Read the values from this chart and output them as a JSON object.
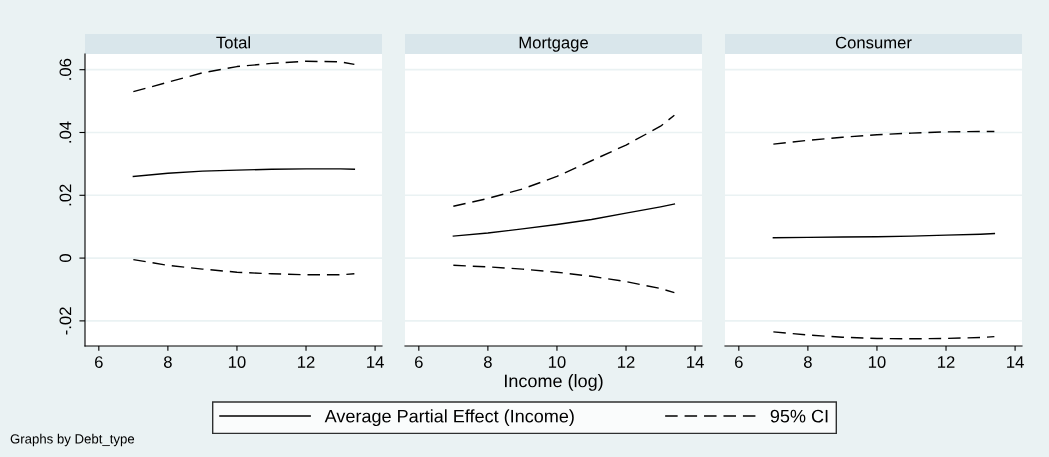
{
  "chart_data": [
    {
      "type": "line",
      "title": "Total",
      "x": [
        7,
        8,
        9,
        10,
        11,
        12,
        13,
        13.4
      ],
      "xlim": [
        5.6,
        14.2
      ],
      "xticks": [
        6,
        8,
        10,
        12,
        14
      ],
      "ylim": [
        -0.028,
        0.065
      ],
      "yticks": [
        {
          "value": 0.06,
          "label": ".06"
        },
        {
          "value": 0.04,
          "label": ".04"
        },
        {
          "value": 0.02,
          "label": ".02"
        },
        {
          "value": 0,
          "label": "0"
        },
        {
          "value": -0.02,
          "label": "-.02"
        }
      ],
      "grid": "y",
      "legend": "bottom",
      "annotations": [
        "Graphs by Debt_type"
      ],
      "series": [
        {
          "name": "Average Partial Effect (Income)",
          "color": "#000000",
          "line_style": "solid",
          "values": [
            0.026,
            0.027,
            0.0277,
            0.028,
            0.0283,
            0.0284,
            0.0284,
            0.0283
          ]
        },
        {
          "name": "95% CI",
          "color": "#000000",
          "line_style": "dashed",
          "values": [
            0.053,
            0.056,
            0.059,
            0.061,
            0.062,
            0.0627,
            0.0625,
            0.0617
          ]
        },
        {
          "color": "#000000",
          "line_style": "dashed",
          "values": [
            -0.0005,
            -0.0023,
            -0.0035,
            -0.0045,
            -0.005,
            -0.0053,
            -0.0053,
            -0.005
          ]
        }
      ]
    },
    {
      "type": "line",
      "title": "Mortgage",
      "xlabel": "Income (log)",
      "x": [
        7,
        8,
        9,
        10,
        11,
        12,
        13,
        13.4
      ],
      "xlim": [
        5.6,
        14.2
      ],
      "xticks": [
        6,
        8,
        10,
        12,
        14
      ],
      "ylim": [
        -0.028,
        0.065
      ],
      "yticks": [
        0.06,
        0.04,
        0.02,
        0,
        -0.02
      ],
      "tick_labels": "x",
      "grid": "y",
      "series": [
        {
          "color": "#000000",
          "line_style": "solid",
          "values": [
            0.007,
            0.008,
            0.0093,
            0.0107,
            0.0123,
            0.0143,
            0.0163,
            0.0172
          ]
        },
        {
          "color": "#000000",
          "line_style": "dashed",
          "values": [
            0.0165,
            0.019,
            0.022,
            0.026,
            0.031,
            0.036,
            0.042,
            0.0455
          ]
        },
        {
          "color": "#000000",
          "line_style": "dashed",
          "values": [
            -0.0023,
            -0.0028,
            -0.0035,
            -0.0045,
            -0.0058,
            -0.0075,
            -0.0097,
            -0.011
          ]
        }
      ]
    },
    {
      "type": "line",
      "title": "Consumer",
      "x": [
        7,
        8,
        9,
        10,
        11,
        12,
        13,
        13.4
      ],
      "xlim": [
        5.6,
        14.2
      ],
      "xticks": [
        6,
        8,
        10,
        12,
        14
      ],
      "ylim": [
        -0.028,
        0.065
      ],
      "yticks": [
        0.06,
        0.04,
        0.02,
        0,
        -0.02
      ],
      "tick_labels": "x",
      "grid": "y",
      "series": [
        {
          "color": "#000000",
          "line_style": "solid",
          "values": [
            0.0065,
            0.0066,
            0.0067,
            0.0068,
            0.007,
            0.0073,
            0.0076,
            0.0078
          ]
        },
        {
          "color": "#000000",
          "line_style": "dashed",
          "values": [
            0.0363,
            0.0375,
            0.0385,
            0.0393,
            0.0398,
            0.0402,
            0.0403,
            0.0403
          ]
        },
        {
          "color": "#000000",
          "line_style": "dashed",
          "values": [
            -0.0235,
            -0.0245,
            -0.0252,
            -0.0256,
            -0.0257,
            -0.0256,
            -0.0253,
            -0.025
          ]
        }
      ]
    }
  ]
}
